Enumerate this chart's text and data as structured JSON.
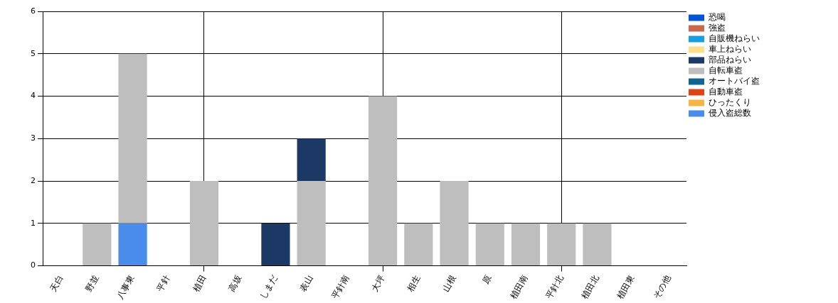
{
  "chart_data": {
    "type": "bar",
    "stacked": true,
    "categories": [
      "天白",
      "野並",
      "八事東",
      "平針",
      "植田",
      "高坂",
      "しまだ",
      "表山",
      "平針南",
      "大坪",
      "相生",
      "山根",
      "原",
      "植田南",
      "平針北",
      "植田北",
      "植田東",
      "その他"
    ],
    "series": [
      {
        "name": "侵入盗総数",
        "color": "#4a8cec",
        "values": [
          0,
          0,
          1,
          0,
          0,
          0,
          0,
          0,
          0,
          0,
          0,
          0,
          0,
          0,
          0,
          0,
          0,
          0
        ]
      },
      {
        "name": "ひったくり",
        "color": "#f8b443",
        "values": [
          0,
          0,
          0,
          0,
          0,
          0,
          0,
          0,
          0,
          0,
          0,
          0,
          0,
          0,
          0,
          0,
          0,
          0
        ]
      },
      {
        "name": "自動車盗",
        "color": "#dc4316",
        "values": [
          0,
          0,
          0,
          0,
          0,
          0,
          0,
          0,
          0,
          0,
          0,
          0,
          0,
          0,
          0,
          0,
          0,
          0
        ]
      },
      {
        "name": "オートバイ盗",
        "color": "#0e6590",
        "values": [
          0,
          0,
          0,
          0,
          0,
          0,
          0,
          0,
          0,
          0,
          0,
          0,
          0,
          0,
          0,
          0,
          0,
          0
        ]
      },
      {
        "name": "自転車盗",
        "color": "#bebebe",
        "values": [
          0,
          1,
          4,
          0,
          2,
          0,
          0,
          2,
          0,
          4,
          1,
          2,
          1,
          1,
          1,
          1,
          0,
          0
        ]
      },
      {
        "name": "部品ねらい",
        "color": "#1c3865",
        "values": [
          0,
          0,
          0,
          0,
          0,
          0,
          1,
          1,
          0,
          0,
          0,
          0,
          0,
          0,
          0,
          0,
          0,
          0
        ]
      },
      {
        "name": "車上ねらい",
        "color": "#fde08a",
        "values": [
          0,
          0,
          0,
          0,
          0,
          0,
          0,
          0,
          0,
          0,
          0,
          0,
          0,
          0,
          0,
          0,
          0,
          0
        ]
      },
      {
        "name": "自販機ねらい",
        "color": "#1a9fdc",
        "values": [
          0,
          0,
          0,
          0,
          0,
          0,
          0,
          0,
          0,
          0,
          0,
          0,
          0,
          0,
          0,
          0,
          0,
          0
        ]
      },
      {
        "name": "強盗",
        "color": "#c8694c",
        "values": [
          0,
          0,
          0,
          0,
          0,
          0,
          0,
          0,
          0,
          0,
          0,
          0,
          0,
          0,
          0,
          0,
          0,
          0
        ]
      },
      {
        "name": "恐喝",
        "color": "#0055d4",
        "values": [
          0,
          0,
          0,
          0,
          0,
          0,
          0,
          0,
          0,
          0,
          0,
          0,
          0,
          0,
          0,
          0,
          0,
          0
        ]
      }
    ],
    "ylim": [
      0,
      6
    ],
    "yticks": [
      0,
      1,
      2,
      3,
      4,
      5,
      6
    ],
    "grid": true,
    "legend": "top right"
  }
}
